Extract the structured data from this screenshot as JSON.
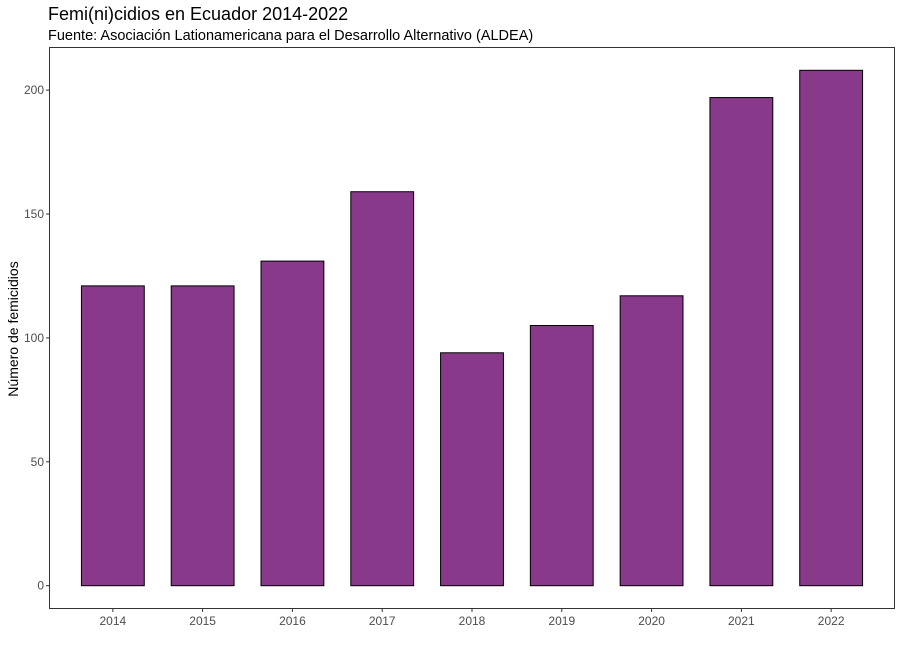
{
  "chart_data": {
    "type": "bar",
    "title": "Femi(ni)cidios en Ecuador 2014-2022",
    "subtitle": "Fuente: Asociación Lationamericana para el Desarrollo Alternativo (ALDEA)",
    "xlabel": "",
    "ylabel": "Número de femicidios",
    "categories": [
      "2014",
      "2015",
      "2016",
      "2017",
      "2018",
      "2019",
      "2020",
      "2021",
      "2022"
    ],
    "values": [
      121,
      121,
      131,
      159,
      94,
      105,
      117,
      197,
      208
    ],
    "ylim": [
      -9,
      217
    ],
    "yticks": [
      0,
      50,
      100,
      150,
      200
    ],
    "grid": false,
    "legend": "none",
    "bar_color": "#88398A",
    "bar_border_color": "#000000",
    "axis_text_color": "#4D4D4D"
  }
}
